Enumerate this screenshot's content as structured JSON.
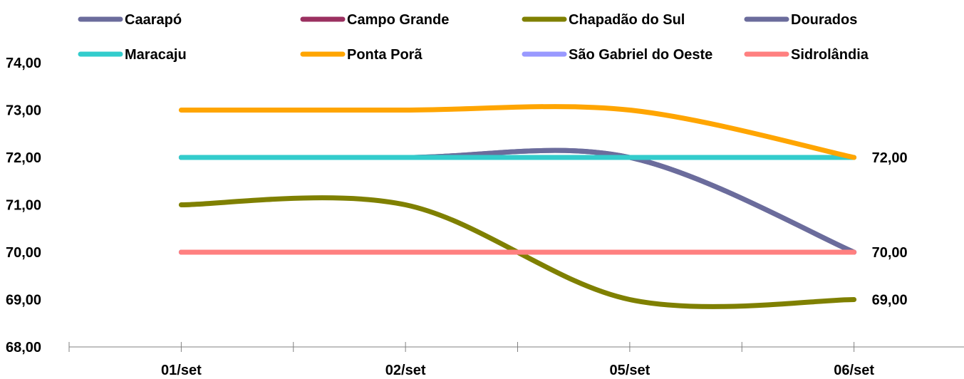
{
  "chart_data": {
    "type": "line",
    "categories": [
      "01/set",
      "02/set",
      "05/set",
      "06/set"
    ],
    "ylim": [
      68,
      74
    ],
    "yticks": [
      "68,00",
      "69,00",
      "70,00",
      "71,00",
      "72,00",
      "73,00",
      "74,00"
    ],
    "grid": false,
    "smooth": true,
    "legend_position": "top",
    "series": [
      {
        "name": "Caarapó",
        "color": "#6B6C9C",
        "values": [
          72,
          72,
          72,
          70
        ]
      },
      {
        "name": "Campo Grande",
        "color": "#9B3060",
        "values": [
          70,
          70,
          70,
          70
        ]
      },
      {
        "name": "Chapadão do Sul",
        "color": "#7F8000",
        "values": [
          71,
          71,
          69,
          69
        ]
      },
      {
        "name": "Dourados",
        "color": "#6B6C9C",
        "values": [
          72,
          72,
          72,
          70
        ]
      },
      {
        "name": "Maracaju",
        "color": "#33CCCC",
        "values": [
          72,
          72,
          72,
          72
        ]
      },
      {
        "name": "Ponta Porã",
        "color": "#FFA500",
        "values": [
          73,
          73,
          73,
          72
        ]
      },
      {
        "name": "São Gabriel do Oeste",
        "color": "#9999FF",
        "values": [
          70,
          70,
          70,
          70
        ]
      },
      {
        "name": "Sidrolândia",
        "color": "#FF8080",
        "values": [
          70,
          70,
          70,
          70
        ]
      }
    ],
    "end_labels": [
      "72,00",
      "70,00",
      "69,00"
    ]
  }
}
